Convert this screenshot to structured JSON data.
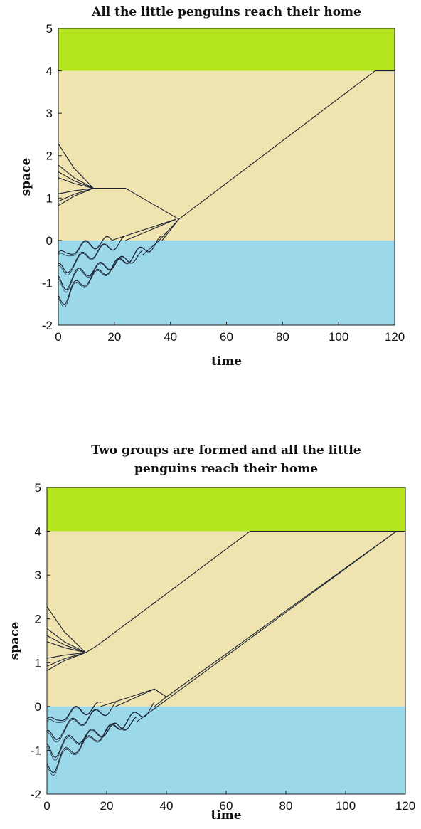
{
  "chart_data": [
    {
      "type": "line",
      "title_lines": [
        "All the little penguins reach their home"
      ],
      "xlabel": "time",
      "ylabel": "space",
      "xlim": [
        0,
        120
      ],
      "ylim": [
        -2,
        5
      ],
      "xticks": [
        "0",
        "20",
        "40",
        "60",
        "80",
        "100",
        "120"
      ],
      "yticks": [
        "-2",
        "-1",
        "0",
        "1",
        "2",
        "3",
        "4",
        "5"
      ],
      "regions": [
        {
          "name": "home",
          "y": [
            4,
            5
          ],
          "color": "#b4e51f"
        },
        {
          "name": "land",
          "y": [
            0,
            4
          ],
          "color": "#efe3b0"
        },
        {
          "name": "sea",
          "y": [
            -2,
            0
          ],
          "color": "#9ad8ea"
        }
      ],
      "land_groups": [
        {
          "starts": [
            2.28,
            1.78,
            1.62,
            1.48,
            1.1,
            0.92,
            0.82
          ],
          "merge": [
            12.5,
            1.23
          ],
          "path": [
            [
              12.5,
              1.23
            ],
            [
              24,
              1.23
            ],
            [
              43,
              0.5
            ],
            [
              113,
              4.0
            ],
            [
              120,
              4.0
            ]
          ]
        }
      ],
      "sea_swimmers": [
        {
          "y0": -0.25,
          "exit": [
            19,
            0
          ],
          "path": [
            [
              19,
              0
            ],
            [
              42,
              0.5
            ]
          ]
        },
        {
          "y0": -0.62,
          "exit": [
            24,
            0
          ],
          "path": [
            [
              24,
              0
            ],
            [
              42,
              0.5
            ]
          ]
        },
        {
          "y0": -0.92,
          "exit": [
            30,
            -0.35
          ],
          "path": [
            [
              30,
              -0.35
            ],
            [
              36,
              0
            ],
            [
              43,
              0.5
            ]
          ]
        },
        {
          "y0": -1.28,
          "exit": [
            37,
            0
          ],
          "path": [
            [
              37,
              0
            ],
            [
              43,
              0.5
            ]
          ]
        }
      ]
    },
    {
      "type": "line",
      "title_lines": [
        "Two groups are formed and all the little",
        "penguins reach their home"
      ],
      "xlabel": "time",
      "ylabel": "space",
      "xlim": [
        0,
        120
      ],
      "ylim": [
        -2,
        5
      ],
      "xticks": [
        "0",
        "20",
        "40",
        "60",
        "80",
        "100",
        "120"
      ],
      "yticks": [
        "-2",
        "-1",
        "0",
        "1",
        "2",
        "3",
        "4",
        "5"
      ],
      "regions": [
        {
          "name": "home",
          "y": [
            4,
            5
          ],
          "color": "#b4e51f"
        },
        {
          "name": "land",
          "y": [
            0,
            4
          ],
          "color": "#efe3b0"
        },
        {
          "name": "sea",
          "y": [
            -2,
            0
          ],
          "color": "#9ad8ea"
        }
      ],
      "land_groups": [
        {
          "starts": [
            2.28,
            1.78,
            1.62,
            1.48,
            1.1,
            0.92,
            0.82
          ],
          "merge": [
            13,
            1.23
          ],
          "path": [
            [
              13,
              1.23
            ],
            [
              17,
              1.4
            ],
            [
              68,
              4.0
            ],
            [
              120,
              4.0
            ]
          ]
        }
      ],
      "sea_swimmers": [
        {
          "y0": -0.25,
          "exit": [
            18,
            0
          ],
          "path": [
            [
              18,
              0
            ],
            [
              36,
              0.4
            ],
            [
              40,
              0.22
            ],
            [
              117,
              4.0
            ],
            [
              120,
              4.0
            ]
          ]
        },
        {
          "y0": -0.62,
          "exit": [
            23,
            0
          ],
          "path": [
            [
              23,
              0
            ],
            [
              36,
              0.4
            ]
          ]
        },
        {
          "y0": -0.92,
          "exit": [
            30,
            -0.35
          ],
          "path": [
            [
              30,
              -0.35
            ],
            [
              37,
              0
            ],
            [
              117,
              4.0
            ]
          ]
        },
        {
          "y0": -1.28,
          "exit": [
            36,
            0
          ],
          "path": [
            [
              36,
              0
            ],
            [
              40,
              0.22
            ]
          ]
        }
      ]
    }
  ]
}
